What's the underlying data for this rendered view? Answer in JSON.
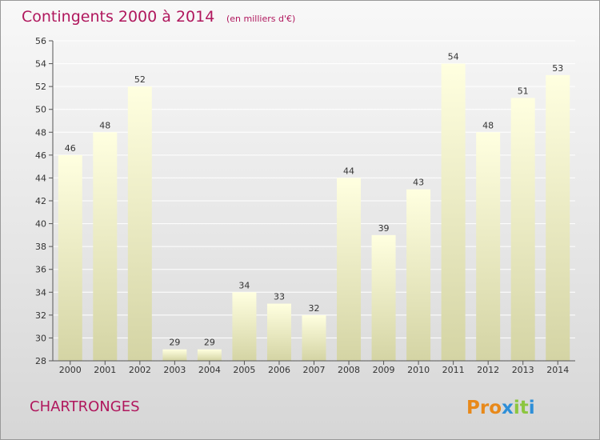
{
  "chart_data": {
    "type": "bar",
    "title": "Contingents 2000 à 2014",
    "subtitle": "(en milliers d'€)",
    "categories": [
      "2000",
      "2001",
      "2002",
      "2003",
      "2004",
      "2005",
      "2006",
      "2007",
      "2008",
      "2009",
      "2010",
      "2011",
      "2012",
      "2013",
      "2014"
    ],
    "values": [
      46,
      48,
      52,
      29,
      29,
      34,
      33,
      32,
      44,
      39,
      43,
      54,
      48,
      51,
      53
    ],
    "ylim": [
      28,
      56
    ],
    "yticks": [
      28,
      30,
      32,
      34,
      36,
      38,
      40,
      42,
      44,
      46,
      48,
      50,
      52,
      54,
      56
    ],
    "grid": true,
    "legend": "none"
  },
  "footer": {
    "town": "CHARTRONGES",
    "logo_letters": [
      "P",
      "r",
      "o",
      "x",
      "i",
      "t",
      "i"
    ]
  },
  "colors": {
    "title": "#b0175d",
    "bar_top": "#ffffe0",
    "bar_bottom": "#d4d4a4",
    "logo": [
      "#e8891a",
      "#e8891a",
      "#e8891a",
      "#2e8fd8",
      "#8cc63e",
      "#8cc63e",
      "#2e8fd8"
    ]
  }
}
